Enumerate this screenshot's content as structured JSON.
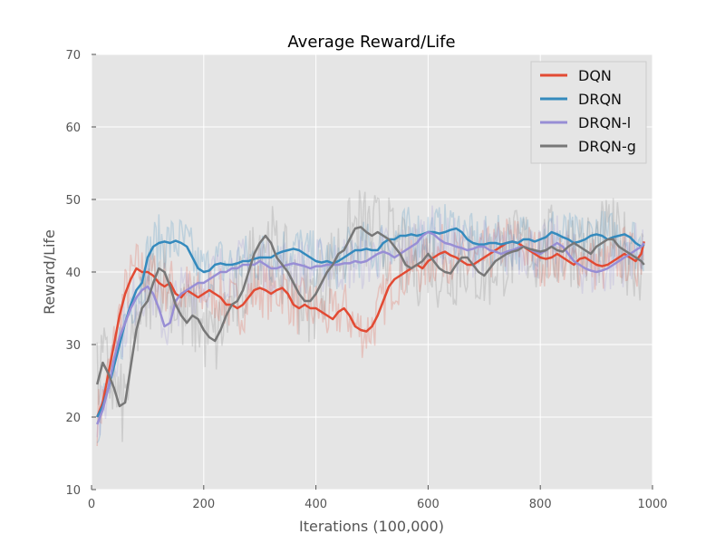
{
  "chart_data": {
    "type": "line",
    "title": "Average Reward/Life",
    "xlabel": "Iterations (100,000)",
    "ylabel": "Reward/Life",
    "xlim": [
      0,
      1000
    ],
    "ylim": [
      10,
      70
    ],
    "xticks": [
      "0",
      "200",
      "400",
      "600",
      "800",
      "1000"
    ],
    "yticks": [
      "10",
      "20",
      "30",
      "40",
      "50",
      "60",
      "70"
    ],
    "grid": true,
    "legend_position": "top-right",
    "background": "#e5e5e5",
    "series": [
      {
        "name": "DQN",
        "color": "#e24a33",
        "x": [
          10,
          20,
          30,
          40,
          50,
          60,
          70,
          80,
          90,
          100,
          110,
          120,
          130,
          140,
          150,
          160,
          170,
          180,
          190,
          200,
          210,
          220,
          230,
          240,
          250,
          260,
          270,
          280,
          290,
          300,
          310,
          320,
          330,
          340,
          350,
          360,
          370,
          380,
          390,
          400,
          410,
          420,
          430,
          440,
          450,
          460,
          470,
          480,
          490,
          500,
          510,
          520,
          530,
          540,
          550,
          560,
          570,
          580,
          590,
          600,
          610,
          620,
          630,
          640,
          650,
          660,
          670,
          680,
          690,
          700,
          710,
          720,
          730,
          740,
          750,
          760,
          770,
          780,
          790,
          800,
          810,
          820,
          830,
          840,
          850,
          860,
          870,
          880,
          890,
          900,
          910,
          920,
          930,
          940,
          950,
          960,
          970,
          980,
          985
        ],
        "y": [
          20,
          22,
          26,
          30,
          34,
          37,
          39,
          40.5,
          40,
          40,
          39.5,
          38.5,
          38,
          38.5,
          37,
          36.5,
          37.5,
          37,
          36.5,
          37,
          37.5,
          37,
          36.5,
          35.5,
          35.5,
          35,
          35.5,
          36.5,
          37.5,
          37.8,
          37.5,
          37,
          37.5,
          37.8,
          37,
          35.5,
          35,
          35.5,
          35,
          35,
          34.5,
          34,
          33.5,
          34.5,
          35,
          34,
          32.5,
          32,
          31.8,
          32.5,
          34,
          36,
          38,
          39,
          39.5,
          40,
          40.5,
          41,
          40.5,
          41.5,
          42,
          42.5,
          42.8,
          42.3,
          42,
          41.5,
          41,
          41,
          41.5,
          42,
          42.5,
          43,
          43.5,
          44,
          44.2,
          44,
          43.5,
          43,
          42.5,
          42,
          41.8,
          42,
          42.5,
          42,
          41.5,
          41,
          41.8,
          42,
          41.5,
          41,
          40.8,
          41,
          41.5,
          42,
          42.5,
          42,
          41.5,
          42.5,
          44.2
        ]
      },
      {
        "name": "DRQN",
        "color": "#348abd",
        "x": [
          10,
          20,
          30,
          40,
          50,
          60,
          70,
          80,
          90,
          100,
          110,
          120,
          130,
          140,
          150,
          160,
          170,
          180,
          190,
          200,
          210,
          220,
          230,
          240,
          250,
          260,
          270,
          280,
          290,
          300,
          310,
          320,
          330,
          340,
          350,
          360,
          370,
          380,
          390,
          400,
          410,
          420,
          430,
          440,
          450,
          460,
          470,
          480,
          490,
          500,
          510,
          520,
          530,
          540,
          550,
          560,
          570,
          580,
          590,
          600,
          610,
          620,
          630,
          640,
          650,
          660,
          670,
          680,
          690,
          700,
          710,
          720,
          730,
          740,
          750,
          760,
          770,
          780,
          790,
          800,
          810,
          820,
          830,
          840,
          850,
          860,
          870,
          880,
          890,
          900,
          910,
          920,
          930,
          940,
          950,
          960,
          970,
          980,
          985
        ],
        "y": [
          20,
          21.5,
          24,
          27,
          30,
          33,
          35.5,
          37.5,
          38.5,
          42,
          43.5,
          44,
          44.2,
          44,
          44.3,
          44,
          43.5,
          42,
          40.5,
          40,
          40.2,
          41,
          41.2,
          41,
          41,
          41.2,
          41.5,
          41.5,
          41.8,
          42,
          42,
          42,
          42.5,
          42.8,
          43,
          43.2,
          43,
          42.5,
          42,
          41.5,
          41.3,
          41.5,
          41.2,
          41.5,
          42,
          42.5,
          43,
          43,
          43.2,
          43,
          43,
          44,
          44.5,
          44.5,
          45,
          45,
          45.2,
          45,
          45.2,
          45.5,
          45.5,
          45.3,
          45.5,
          45.8,
          46,
          45.5,
          44.5,
          44,
          43.8,
          43.8,
          44,
          44,
          43.8,
          44,
          44.2,
          44,
          44.5,
          44.5,
          44.2,
          44.5,
          44.8,
          45.5,
          45.2,
          44.8,
          44.5,
          44,
          44.2,
          44.5,
          45,
          45.2,
          45,
          44.5,
          44.8,
          45,
          45.2,
          44.8,
          44,
          43.5,
          43.8
        ]
      },
      {
        "name": "DRQN-l",
        "color": "#988ed5",
        "x": [
          10,
          20,
          30,
          40,
          50,
          60,
          70,
          80,
          90,
          100,
          110,
          120,
          130,
          140,
          150,
          160,
          170,
          180,
          190,
          200,
          210,
          220,
          230,
          240,
          250,
          260,
          270,
          280,
          290,
          300,
          310,
          320,
          330,
          340,
          350,
          360,
          370,
          380,
          390,
          400,
          410,
          420,
          430,
          440,
          450,
          460,
          470,
          480,
          490,
          500,
          510,
          520,
          530,
          540,
          550,
          560,
          570,
          580,
          590,
          600,
          610,
          620,
          630,
          640,
          650,
          660,
          670,
          680,
          690,
          700,
          710,
          720,
          730,
          740,
          750,
          760,
          770,
          780,
          790,
          800,
          810,
          820,
          830,
          840,
          850,
          860,
          870,
          880,
          890,
          900,
          910,
          920,
          930,
          940,
          950,
          960,
          970,
          980,
          985
        ],
        "y": [
          19,
          21,
          24,
          28,
          31,
          33,
          35,
          36.5,
          37.5,
          38,
          37,
          35,
          32.5,
          33,
          36,
          37,
          37.5,
          38,
          38.5,
          38.5,
          39,
          39.5,
          40,
          40,
          40.5,
          40.5,
          41,
          41,
          41,
          41.5,
          41,
          40.5,
          40.5,
          40.8,
          41,
          41.2,
          41,
          40.8,
          40.5,
          40.8,
          40.8,
          41,
          41,
          41,
          41.2,
          41.2,
          41.5,
          41.3,
          41.5,
          42,
          42.5,
          42.8,
          42.5,
          42,
          42.5,
          43,
          43.5,
          44,
          45,
          45.5,
          45.2,
          44.5,
          44,
          43.8,
          43.5,
          43.3,
          43,
          43.2,
          43.5,
          43.5,
          43,
          42.8,
          42.5,
          42.8,
          43,
          43.3,
          43.5,
          43.2,
          42.8,
          42.5,
          43,
          43.5,
          44,
          43.5,
          42.5,
          41.5,
          41,
          40.5,
          40.2,
          40,
          40.2,
          40.5,
          41,
          41.5,
          42,
          42.5,
          43,
          43.5,
          44
        ]
      },
      {
        "name": "DRQN-g",
        "color": "#777777",
        "x": [
          10,
          20,
          30,
          40,
          50,
          60,
          70,
          80,
          90,
          100,
          110,
          120,
          130,
          140,
          150,
          160,
          170,
          180,
          190,
          200,
          210,
          220,
          230,
          240,
          250,
          260,
          270,
          280,
          290,
          300,
          310,
          320,
          330,
          340,
          350,
          360,
          370,
          380,
          390,
          400,
          410,
          420,
          430,
          440,
          450,
          460,
          470,
          480,
          490,
          500,
          510,
          520,
          530,
          540,
          550,
          560,
          570,
          580,
          590,
          600,
          610,
          620,
          630,
          640,
          650,
          660,
          670,
          680,
          690,
          700,
          710,
          720,
          730,
          740,
          750,
          760,
          770,
          780,
          790,
          800,
          810,
          820,
          830,
          840,
          850,
          860,
          870,
          880,
          890,
          900,
          910,
          920,
          930,
          940,
          950,
          960,
          970,
          980,
          985
        ],
        "y": [
          24.5,
          27.5,
          26,
          24,
          21.5,
          22,
          27,
          32,
          35,
          36,
          38.5,
          40.5,
          40,
          38,
          35.5,
          34,
          33,
          34,
          33.5,
          32,
          31,
          30.5,
          32,
          34,
          35.5,
          36,
          37.5,
          40,
          42.5,
          44,
          45,
          44,
          42,
          41,
          40,
          38.5,
          37,
          36,
          36,
          37,
          38.5,
          40,
          41,
          42.5,
          43,
          44.5,
          46,
          46.2,
          45.5,
          45,
          45.5,
          45,
          44.5,
          43.5,
          42.5,
          41,
          40.5,
          41,
          41.5,
          42.5,
          41.5,
          40.5,
          40,
          39.8,
          41,
          42,
          42,
          41,
          40,
          39.5,
          40.5,
          41.5,
          42,
          42.5,
          42.8,
          43,
          43.5,
          43.2,
          43,
          42.8,
          43,
          43.5,
          43,
          42.8,
          43.5,
          44,
          43.5,
          43,
          42.5,
          43.5,
          44,
          44.5,
          44.5,
          43.5,
          43,
          42.5,
          42,
          41.5,
          41
        ]
      }
    ]
  }
}
